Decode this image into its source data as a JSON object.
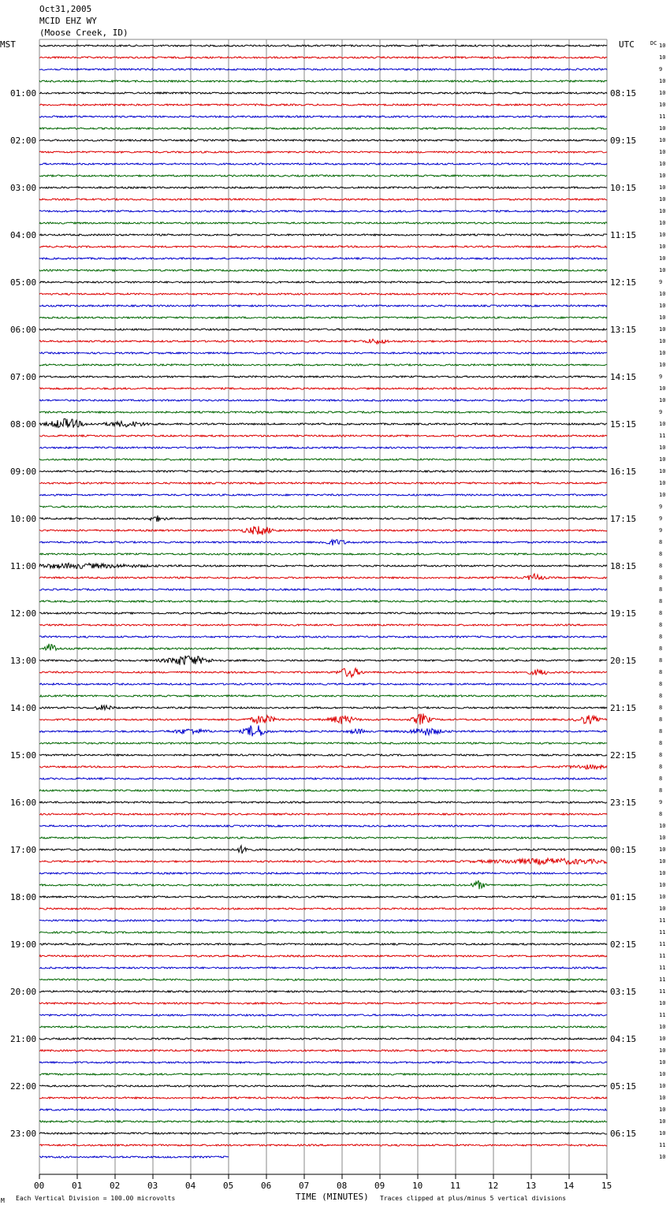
{
  "header": {
    "date": "Oct31,2005",
    "station": "MCID EHZ WY",
    "location": "(Moose Creek, ID)"
  },
  "left_axis_label": "MST",
  "right_axis_label": "UTC",
  "dc_label": "DC",
  "footer": {
    "scale_note": "Each Vertical Division =  100.00 microvolts",
    "xlabel": "TIME (MINUTES)",
    "clip_note": "Traces clipped at plus/minus 5 vertical divisions",
    "corner_mark": "M"
  },
  "colors": {
    "cycle": [
      "#000000",
      "#dd0000",
      "#0000cc",
      "#006600"
    ],
    "grid": "#888888"
  },
  "chart_data": {
    "type": "line",
    "title": "",
    "xlabel": "TIME (MINUTES)",
    "xlim": [
      0,
      15
    ],
    "x_ticks": [
      "00",
      "01",
      "02",
      "03",
      "04",
      "05",
      "06",
      "07",
      "08",
      "09",
      "10",
      "11",
      "12",
      "13",
      "14",
      "15"
    ],
    "trace_count": 95,
    "last_trace_length_minutes": 5,
    "left_hour_labels": [
      "01:00",
      "02:00",
      "03:00",
      "04:00",
      "05:00",
      "06:00",
      "07:00",
      "08:00",
      "09:00",
      "10:00",
      "11:00",
      "12:00",
      "13:00",
      "14:00",
      "15:00",
      "16:00",
      "17:00",
      "18:00",
      "19:00",
      "20:00",
      "21:00",
      "22:00",
      "23:00"
    ],
    "right_hour_labels": [
      "08:15",
      "09:15",
      "10:15",
      "11:15",
      "12:15",
      "13:15",
      "14:15",
      "15:15",
      "16:15",
      "17:15",
      "18:15",
      "19:15",
      "20:15",
      "21:15",
      "22:15",
      "23:15",
      "00:15",
      "01:15",
      "02:15",
      "03:15",
      "04:15",
      "05:15",
      "06:15"
    ],
    "dc_offsets": [
      10,
      10,
      9,
      10,
      10,
      10,
      11,
      10,
      10,
      10,
      10,
      10,
      10,
      10,
      10,
      10,
      10,
      10,
      10,
      10,
      9,
      10,
      10,
      10,
      10,
      10,
      10,
      10,
      9,
      10,
      10,
      9,
      10,
      11,
      10,
      10,
      10,
      10,
      10,
      9,
      9,
      9,
      8,
      8,
      8,
      8,
      8,
      8,
      8,
      8,
      8,
      8,
      8,
      8,
      8,
      8,
      8,
      8,
      8,
      8,
      8,
      8,
      8,
      8,
      9,
      8,
      10,
      10,
      10,
      10,
      10,
      10,
      10,
      10,
      11,
      11,
      11,
      11,
      11,
      11,
      11,
      10,
      11,
      10,
      10,
      10,
      10,
      10,
      10,
      10,
      10,
      10,
      10,
      11,
      10
    ],
    "events": [
      {
        "trace": 32,
        "minute": 0.7,
        "amp": 6,
        "width": 0.4
      },
      {
        "trace": 32,
        "minute": 2.3,
        "amp": 3,
        "width": 0.5
      },
      {
        "trace": 25,
        "minute": 8.9,
        "amp": 2.5,
        "width": 0.3
      },
      {
        "trace": 40,
        "minute": 3.1,
        "amp": 3,
        "width": 0.2
      },
      {
        "trace": 41,
        "minute": 5.8,
        "amp": 5,
        "width": 0.35
      },
      {
        "trace": 42,
        "minute": 7.8,
        "amp": 3,
        "width": 0.3
      },
      {
        "trace": 44,
        "minute": 1.0,
        "amp": 2.5,
        "width": 1.5
      },
      {
        "trace": 45,
        "minute": 13.1,
        "amp": 4,
        "width": 0.2
      },
      {
        "trace": 51,
        "minute": 0.3,
        "amp": 6,
        "width": 0.15
      },
      {
        "trace": 52,
        "minute": 3.9,
        "amp": 6,
        "width": 0.5
      },
      {
        "trace": 53,
        "minute": 8.2,
        "amp": 6,
        "width": 0.25
      },
      {
        "trace": 53,
        "minute": 13.2,
        "amp": 3,
        "width": 0.25
      },
      {
        "trace": 56,
        "minute": 1.7,
        "amp": 3,
        "width": 0.2
      },
      {
        "trace": 57,
        "minute": 5.9,
        "amp": 5,
        "width": 0.3
      },
      {
        "trace": 57,
        "minute": 8.0,
        "amp": 5,
        "width": 0.3
      },
      {
        "trace": 57,
        "minute": 10.1,
        "amp": 7,
        "width": 0.2
      },
      {
        "trace": 57,
        "minute": 14.5,
        "amp": 5,
        "width": 0.25
      },
      {
        "trace": 58,
        "minute": 5.7,
        "amp": 8,
        "width": 0.25
      },
      {
        "trace": 58,
        "minute": 4.0,
        "amp": 3,
        "width": 0.4
      },
      {
        "trace": 58,
        "minute": 10.2,
        "amp": 4,
        "width": 0.4
      },
      {
        "trace": 58,
        "minute": 8.4,
        "amp": 2.5,
        "width": 0.2
      },
      {
        "trace": 68,
        "minute": 5.4,
        "amp": 5,
        "width": 0.15
      },
      {
        "trace": 69,
        "minute": 13.5,
        "amp": 3,
        "width": 1.5
      },
      {
        "trace": 71,
        "minute": 11.6,
        "amp": 5,
        "width": 0.15
      },
      {
        "trace": 61,
        "minute": 14.5,
        "amp": 2,
        "width": 0.5
      }
    ]
  }
}
